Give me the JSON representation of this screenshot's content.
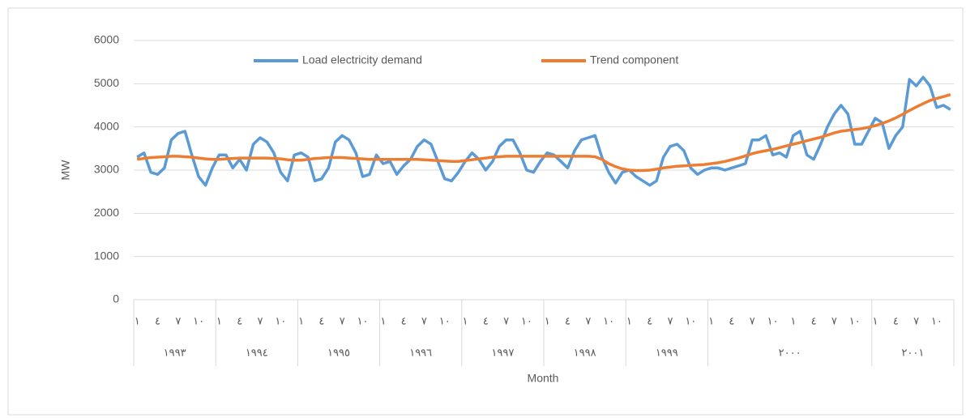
{
  "chart_data": {
    "type": "line",
    "y_label": "MW",
    "x_label": "Month",
    "categories": [
      "١",
      null,
      null,
      "٤",
      null,
      null,
      "٧",
      null,
      null,
      "١٠",
      null,
      null,
      "١",
      null,
      null,
      "٤",
      null,
      null,
      "٧",
      null,
      null,
      "١٠",
      null,
      null,
      "١",
      null,
      null,
      "٤",
      null,
      null,
      "٧",
      null,
      null,
      "١٠",
      null,
      null,
      "١",
      null,
      null,
      "٤",
      null,
      null,
      "٧",
      null,
      null,
      "١٠",
      null,
      null,
      "١",
      null,
      null,
      "٤",
      null,
      null,
      "٧",
      null,
      null,
      "١٠",
      null,
      null,
      "١",
      null,
      null,
      "٤",
      null,
      null,
      "٧",
      null,
      null,
      "١٠",
      null,
      null,
      "١",
      null,
      null,
      "٤",
      null,
      null,
      "٧",
      null,
      null,
      "١٠",
      null,
      null,
      "١",
      null,
      null,
      "٤",
      null,
      null,
      "٧",
      null,
      null,
      "١٠",
      null,
      null,
      "١",
      null,
      null,
      "٤",
      null,
      null,
      "٧",
      null,
      null,
      "١٠",
      null,
      null,
      "١",
      null,
      null,
      "٤",
      null,
      null,
      "٧",
      null,
      null,
      "١٠",
      null,
      null
    ],
    "year_categories": [
      "١٩٩٣",
      null,
      null,
      null,
      null,
      null,
      null,
      null,
      null,
      null,
      null,
      null,
      "١٩٩٤",
      null,
      null,
      null,
      null,
      null,
      null,
      null,
      null,
      null,
      null,
      null,
      "١٩٩٥",
      null,
      null,
      null,
      null,
      null,
      null,
      null,
      null,
      null,
      null,
      null,
      "١٩٩٦",
      null,
      null,
      null,
      null,
      null,
      null,
      null,
      null,
      null,
      null,
      null,
      "١٩٩٧",
      null,
      null,
      null,
      null,
      null,
      null,
      null,
      null,
      null,
      null,
      null,
      "١٩٩٨",
      null,
      null,
      null,
      null,
      null,
      null,
      null,
      null,
      null,
      null,
      null,
      "١٩٩٩",
      null,
      null,
      null,
      null,
      null,
      null,
      null,
      null,
      null,
      null,
      null,
      "٢٠٠٠",
      null,
      null,
      null,
      null,
      null,
      null,
      null,
      null,
      null,
      null,
      null,
      null,
      null,
      null,
      null,
      null,
      null,
      null,
      null,
      null,
      null,
      null,
      null,
      "٢٠٠١",
      null,
      null,
      null,
      null,
      null,
      null,
      null,
      null,
      null,
      null,
      null
    ],
    "series": [
      {
        "name": "Load electricity demand",
        "color": "#5b9bd5",
        "values": [
          3300,
          3400,
          2950,
          2900,
          3050,
          3700,
          3850,
          3900,
          3350,
          2850,
          2650,
          3050,
          3350,
          3350,
          3050,
          3250,
          3000,
          3600,
          3750,
          3650,
          3400,
          2950,
          2750,
          3350,
          3400,
          3300,
          2750,
          2800,
          3050,
          3650,
          3800,
          3700,
          3400,
          2850,
          2900,
          3350,
          3150,
          3200,
          2900,
          3100,
          3250,
          3550,
          3700,
          3600,
          3200,
          2800,
          2750,
          2950,
          3200,
          3400,
          3250,
          3000,
          3200,
          3550,
          3700,
          3700,
          3400,
          3000,
          2950,
          3200,
          3400,
          3350,
          3200,
          3050,
          3450,
          3700,
          3750,
          3800,
          3300,
          2950,
          2700,
          2950,
          3000,
          2850,
          2750,
          2650,
          2750,
          3300,
          3550,
          3600,
          3450,
          3050,
          2900,
          3000,
          3050,
          3050,
          3000,
          3050,
          3100,
          3150,
          3700,
          3700,
          3800,
          3350,
          3400,
          3300,
          3800,
          3900,
          3350,
          3250,
          3600,
          4000,
          4300,
          4500,
          4300,
          3600,
          3600,
          3900,
          4200,
          4100,
          3500,
          3800,
          4000,
          5100,
          4950,
          5150,
          4950,
          4450,
          4500,
          4400
        ]
      },
      {
        "name": "Trend component",
        "color": "#ed7d31",
        "values": [
          3250,
          3270,
          3290,
          3300,
          3310,
          3320,
          3320,
          3310,
          3300,
          3280,
          3260,
          3250,
          3250,
          3260,
          3270,
          3280,
          3280,
          3280,
          3280,
          3280,
          3270,
          3260,
          3240,
          3230,
          3230,
          3250,
          3270,
          3280,
          3290,
          3290,
          3290,
          3280,
          3270,
          3260,
          3250,
          3250,
          3250,
          3250,
          3250,
          3250,
          3250,
          3250,
          3240,
          3230,
          3220,
          3210,
          3200,
          3200,
          3220,
          3240,
          3260,
          3280,
          3300,
          3310,
          3320,
          3320,
          3320,
          3320,
          3320,
          3320,
          3320,
          3320,
          3320,
          3320,
          3320,
          3320,
          3320,
          3310,
          3250,
          3150,
          3080,
          3030,
          3000,
          2990,
          2990,
          3000,
          3020,
          3050,
          3070,
          3090,
          3100,
          3110,
          3120,
          3130,
          3150,
          3170,
          3200,
          3240,
          3280,
          3330,
          3380,
          3420,
          3450,
          3480,
          3520,
          3560,
          3600,
          3640,
          3680,
          3720,
          3760,
          3810,
          3860,
          3900,
          3920,
          3940,
          3960,
          3990,
          4030,
          4080,
          4140,
          4210,
          4290,
          4380,
          4460,
          4540,
          4610,
          4660,
          4700,
          4750
        ]
      }
    ],
    "ylim": [
      0,
      6000
    ],
    "yticks": [
      0,
      1000,
      2000,
      3000,
      4000,
      5000,
      6000
    ],
    "grid": true,
    "legend": "top"
  }
}
